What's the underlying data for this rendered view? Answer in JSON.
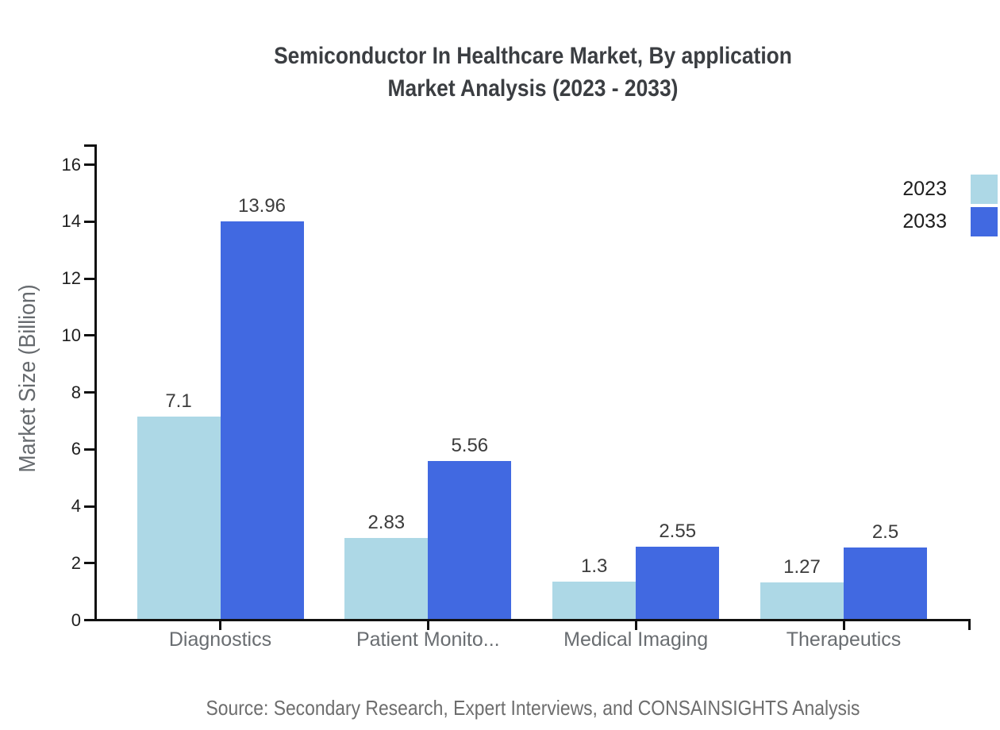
{
  "title": {
    "line1": "Semiconductor In Healthcare Market, By application",
    "line2": "Market Analysis (2023 - 2033)"
  },
  "legend": [
    {
      "label": "2023",
      "color": "#ADD8E6"
    },
    {
      "label": "2033",
      "color": "#4169E1"
    }
  ],
  "source": "Source: Secondary Research, Expert Interviews, and CONSAINSIGHTS Analysis",
  "chart_data": {
    "type": "bar",
    "title": "Semiconductor In Healthcare Market, By application Market Analysis (2023 - 2033)",
    "categories": [
      "Diagnostics",
      "Patient Monito...",
      "Medical Imaging",
      "Therapeutics"
    ],
    "series": [
      {
        "name": "2023",
        "color": "#ADD8E6",
        "values": [
          7.1,
          2.83,
          1.3,
          1.27
        ]
      },
      {
        "name": "2033",
        "color": "#4169E1",
        "values": [
          13.96,
          5.56,
          2.55,
          2.5
        ]
      }
    ],
    "xlabel": "",
    "ylabel": "Market Size (Billion)",
    "ylim": [
      0,
      16
    ],
    "yticks": [
      0,
      2,
      4,
      6,
      8,
      10,
      12,
      14,
      16
    ],
    "grid": false,
    "legend_position": "top-right",
    "data_labels": true,
    "colors": {
      "axis": "#111111",
      "tick_label": "#1f1f1f",
      "category_label": "#696d71",
      "value_label": "#3c3c3c"
    }
  }
}
